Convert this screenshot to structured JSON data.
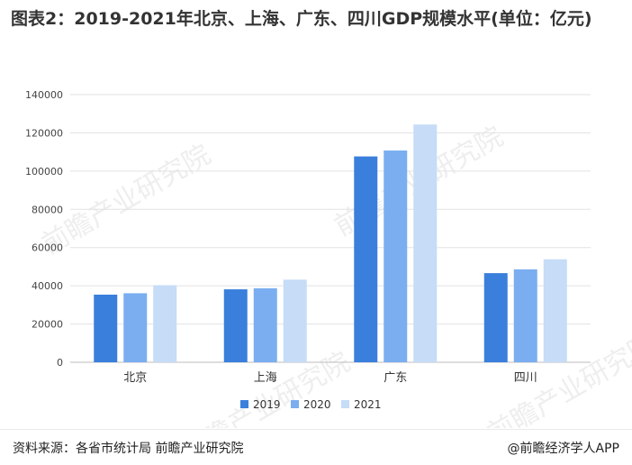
{
  "title": "图表2：2019-2021年北京、上海、广东、四川GDP规模水平(单位：亿元)",
  "source": "资料来源：各省市统计局 前瞻产业研究院",
  "brand": "@前瞻经济学人APP",
  "watermark": "前瞻产业研究院",
  "chart_data": {
    "type": "bar",
    "title": "图表2：2019-2021年北京、上海、广东、四川GDP规模水平(单位：亿元)",
    "categories": [
      "北京",
      "上海",
      "广东",
      "四川"
    ],
    "series": [
      {
        "name": "2019",
        "color": "#3a7fdc",
        "values": [
          35371,
          38155,
          107671,
          46616
        ]
      },
      {
        "name": "2020",
        "color": "#7aaef0",
        "values": [
          36103,
          38701,
          110761,
          48599
        ]
      },
      {
        "name": "2021",
        "color": "#c6dcf7",
        "values": [
          40270,
          43215,
          124370,
          53851
        ]
      }
    ],
    "ylim": [
      0,
      140000
    ],
    "yticks": [
      "0",
      "20000",
      "40000",
      "60000",
      "80000",
      "100000",
      "120000",
      "140000"
    ],
    "grid": true,
    "legend_position": "bottom"
  }
}
